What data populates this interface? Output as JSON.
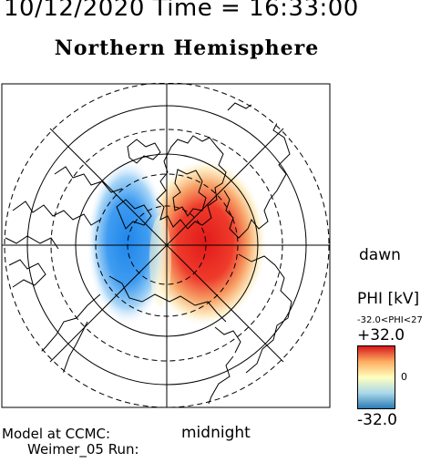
{
  "header": {
    "date_time": "10/12/2020 Time = 16:33:00",
    "hemisphere": "Northern Hemisphere"
  },
  "map": {
    "projection": "polar",
    "center": "geomagnetic north pole",
    "background_color": "#ffffff",
    "line_color": "#000000",
    "labels": {
      "dawn": "dawn",
      "midnight": "midnight"
    },
    "potential_pattern": {
      "positive_cell_side": "dawn",
      "negative_cell_side": "dusk",
      "positive_color": "#e62020",
      "negative_color": "#2288ee"
    }
  },
  "colorbar": {
    "title": "PHI [kV]",
    "range_text": "-32.0<PHI<27",
    "max_label": "+32.0",
    "zero_label": "0",
    "min_label": "-32.0",
    "colors": [
      "#d7191c",
      "#fdae61",
      "#ffffbf",
      "#abd9e9",
      "#2c7bb6"
    ]
  },
  "footer": {
    "model": "Model at CCMC:",
    "run": "Weimer_05 Run:"
  }
}
